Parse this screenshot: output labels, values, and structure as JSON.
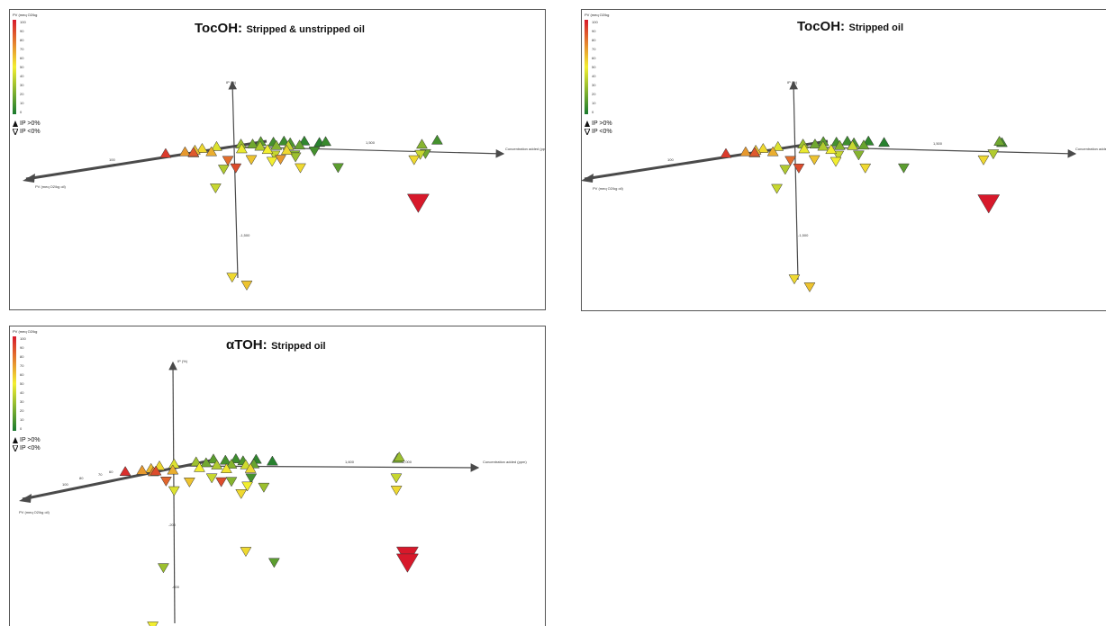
{
  "colors": {
    "axis": "#4a4a4a",
    "panel_border": "#555555",
    "low": "#1a7a2e",
    "mid": "#f2ee30",
    "high": "#d7192b"
  },
  "legend": {
    "title": "PV (meq O2/kg",
    "ticks": [
      "100",
      "90",
      "80",
      "70",
      "60",
      "50",
      "40",
      "30",
      "20",
      "10",
      "0"
    ],
    "ip_pos": "IP >0%",
    "ip_neg": "IP <0%"
  },
  "chart_data": [
    {
      "type": "scatter",
      "title_main": "TocOH:",
      "title_sub": "Stripped & unstripped oil",
      "xlabel": "Concentration added (ppm)",
      "ylabel": "IP (%)",
      "zlabel": "PV (meq O2/kg oil)",
      "x_ticks": [
        "1,500"
      ],
      "y_ticks": [
        "-1,500"
      ],
      "z_ticks": [
        "100"
      ],
      "xlim": [
        0,
        3000
      ],
      "ylim": [
        -1800,
        100
      ],
      "zlim": [
        0,
        100
      ],
      "color_scale": "PV 0 (green) to 100 (red)",
      "marker": "up-triangle IP>0, down-triangle IP<0",
      "points": [
        {
          "x": 10,
          "y": 20,
          "z": 92
        },
        {
          "x": 50,
          "y": 15,
          "z": 70
        },
        {
          "x": 80,
          "y": 18,
          "z": 60
        },
        {
          "x": 120,
          "y": 25,
          "z": 55
        },
        {
          "x": 160,
          "y": 10,
          "z": 72
        },
        {
          "x": 200,
          "y": 30,
          "z": 45
        },
        {
          "x": 260,
          "y": 22,
          "z": 85
        },
        {
          "x": 300,
          "y": 12,
          "z": 65
        },
        {
          "x": 350,
          "y": 35,
          "z": 30
        },
        {
          "x": 400,
          "y": 28,
          "z": 20
        },
        {
          "x": 450,
          "y": 40,
          "z": 15
        },
        {
          "x": 500,
          "y": 18,
          "z": 48
        },
        {
          "x": 550,
          "y": 33,
          "z": 10
        },
        {
          "x": 600,
          "y": 25,
          "z": 35
        },
        {
          "x": 650,
          "y": 38,
          "z": 8
        },
        {
          "x": 700,
          "y": 22,
          "z": 25
        },
        {
          "x": 750,
          "y": 30,
          "z": 12
        },
        {
          "x": 800,
          "y": 15,
          "z": 50
        },
        {
          "x": 850,
          "y": 36,
          "z": 5
        },
        {
          "x": 900,
          "y": 20,
          "z": 18
        },
        {
          "x": 950,
          "y": 32,
          "z": 40
        },
        {
          "x": 1000,
          "y": 26,
          "z": 3
        },
        {
          "x": 1050,
          "y": 14,
          "z": 55
        },
        {
          "x": 1100,
          "y": 34,
          "z": 7
        },
        {
          "x": 600,
          "y": -60,
          "z": 80
        },
        {
          "x": 700,
          "y": -80,
          "z": 60
        },
        {
          "x": 800,
          "y": -50,
          "z": 40
        },
        {
          "x": 900,
          "y": -70,
          "z": 25
        },
        {
          "x": 1000,
          "y": -40,
          "z": 10
        },
        {
          "x": 750,
          "y": -150,
          "z": 88
        },
        {
          "x": 850,
          "y": -120,
          "z": 50
        },
        {
          "x": 950,
          "y": -90,
          "z": 30
        },
        {
          "x": 1100,
          "y": -60,
          "z": 70
        },
        {
          "x": 1200,
          "y": -200,
          "z": 55
        },
        {
          "x": 1300,
          "y": -260,
          "z": 15
        },
        {
          "x": 200,
          "y": -250,
          "z": 35
        },
        {
          "x": 150,
          "y": -500,
          "z": 40
        },
        {
          "x": 2300,
          "y": 30,
          "z": 25
        },
        {
          "x": 2350,
          "y": 45,
          "z": 10
        },
        {
          "x": 2400,
          "y": -40,
          "z": 40
        },
        {
          "x": 2450,
          "y": -90,
          "z": 55
        },
        {
          "x": 2300,
          "y": -60,
          "z": 20
        },
        {
          "x": 2850,
          "y": -600,
          "z": 100
        },
        {
          "x": 450,
          "y": -1700,
          "z": 55
        },
        {
          "x": 650,
          "y": -1800,
          "z": 60
        }
      ]
    },
    {
      "type": "scatter",
      "title_main": "TocOH:",
      "title_sub": "Stripped oil",
      "xlabel": "Concentration added (ppm)",
      "ylabel": "IP (%)",
      "zlabel": "PV (meq O2/kg oil)",
      "x_ticks": [
        "1,500"
      ],
      "y_ticks": [
        "-1,500"
      ],
      "z_ticks": [
        "100"
      ],
      "xlim": [
        0,
        3000
      ],
      "ylim": [
        -1800,
        100
      ],
      "zlim": [
        0,
        100
      ],
      "color_scale": "PV 0 (green) to 100 (red)",
      "marker": "up-triangle IP>0, down-triangle IP<0",
      "points": [
        {
          "x": 10,
          "y": 20,
          "z": 92
        },
        {
          "x": 50,
          "y": 15,
          "z": 70
        },
        {
          "x": 80,
          "y": 18,
          "z": 60
        },
        {
          "x": 120,
          "y": 25,
          "z": 55
        },
        {
          "x": 160,
          "y": 10,
          "z": 72
        },
        {
          "x": 200,
          "y": 30,
          "z": 45
        },
        {
          "x": 260,
          "y": 22,
          "z": 85
        },
        {
          "x": 300,
          "y": 12,
          "z": 65
        },
        {
          "x": 350,
          "y": 35,
          "z": 30
        },
        {
          "x": 400,
          "y": 28,
          "z": 20
        },
        {
          "x": 450,
          "y": 40,
          "z": 15
        },
        {
          "x": 500,
          "y": 18,
          "z": 48
        },
        {
          "x": 550,
          "y": 33,
          "z": 10
        },
        {
          "x": 600,
          "y": 25,
          "z": 35
        },
        {
          "x": 650,
          "y": 38,
          "z": 8
        },
        {
          "x": 700,
          "y": 22,
          "z": 25
        },
        {
          "x": 750,
          "y": 30,
          "z": 12
        },
        {
          "x": 800,
          "y": 15,
          "z": 50
        },
        {
          "x": 850,
          "y": 36,
          "z": 5
        },
        {
          "x": 900,
          "y": 20,
          "z": 18
        },
        {
          "x": 950,
          "y": 32,
          "z": 40
        },
        {
          "x": 1000,
          "y": 26,
          "z": 3
        },
        {
          "x": 600,
          "y": -60,
          "z": 80
        },
        {
          "x": 700,
          "y": -80,
          "z": 60
        },
        {
          "x": 800,
          "y": -50,
          "z": 40
        },
        {
          "x": 900,
          "y": -70,
          "z": 25
        },
        {
          "x": 750,
          "y": -150,
          "z": 88
        },
        {
          "x": 850,
          "y": -120,
          "z": 50
        },
        {
          "x": 1200,
          "y": -200,
          "z": 55
        },
        {
          "x": 1300,
          "y": -260,
          "z": 15
        },
        {
          "x": 200,
          "y": -250,
          "z": 35
        },
        {
          "x": 150,
          "y": -500,
          "z": 40
        },
        {
          "x": 2300,
          "y": 30,
          "z": 10
        },
        {
          "x": 2350,
          "y": 45,
          "z": 20
        },
        {
          "x": 2400,
          "y": -40,
          "z": 35
        },
        {
          "x": 2450,
          "y": -90,
          "z": 55
        },
        {
          "x": 2850,
          "y": -600,
          "z": 100
        },
        {
          "x": 450,
          "y": -1700,
          "z": 55
        },
        {
          "x": 650,
          "y": -1800,
          "z": 60
        }
      ]
    },
    {
      "type": "scatter",
      "title_main": "αTOH:",
      "title_sub": "Stripped oil",
      "xlabel": "Concentration added (ppm)",
      "ylabel": "IP (%)",
      "zlabel": "PV (meq O2/kg oil)",
      "x_ticks": [
        "400",
        "1,600",
        "2,000"
      ],
      "y_ticks": [
        "-200",
        "-600"
      ],
      "z_ticks": [
        "100",
        "80",
        "70",
        "60"
      ],
      "xlim": [
        0,
        2600
      ],
      "ylim": [
        -900,
        150
      ],
      "zlim": [
        0,
        100
      ],
      "color_scale": "PV 0 (green) to 100 (red)",
      "marker": "up-triangle IP>0, down-triangle IP<0",
      "points": [
        {
          "x": 10,
          "y": 30,
          "z": 95
        },
        {
          "x": 40,
          "y": 20,
          "z": 70
        },
        {
          "x": 80,
          "y": 25,
          "z": 62
        },
        {
          "x": 120,
          "y": 35,
          "z": 55
        },
        {
          "x": 160,
          "y": 15,
          "z": 75
        },
        {
          "x": 200,
          "y": 40,
          "z": 45
        },
        {
          "x": 240,
          "y": 28,
          "z": 88
        },
        {
          "x": 280,
          "y": 18,
          "z": 65
        },
        {
          "x": 320,
          "y": 42,
          "z": 30
        },
        {
          "x": 360,
          "y": 30,
          "z": 20
        },
        {
          "x": 400,
          "y": 48,
          "z": 15
        },
        {
          "x": 440,
          "y": 22,
          "z": 50
        },
        {
          "x": 480,
          "y": 38,
          "z": 10
        },
        {
          "x": 520,
          "y": 27,
          "z": 35
        },
        {
          "x": 560,
          "y": 45,
          "z": 8
        },
        {
          "x": 600,
          "y": 25,
          "z": 25
        },
        {
          "x": 640,
          "y": 36,
          "z": 12
        },
        {
          "x": 680,
          "y": 17,
          "z": 52
        },
        {
          "x": 720,
          "y": 40,
          "z": 5
        },
        {
          "x": 760,
          "y": 22,
          "z": 18
        },
        {
          "x": 800,
          "y": 33,
          "z": 42
        },
        {
          "x": 850,
          "y": 28,
          "z": 3
        },
        {
          "x": 900,
          "y": 20,
          "z": 55
        },
        {
          "x": 300,
          "y": -30,
          "z": 82
        },
        {
          "x": 400,
          "y": -50,
          "z": 60
        },
        {
          "x": 500,
          "y": -40,
          "z": 40
        },
        {
          "x": 600,
          "y": -70,
          "z": 25
        },
        {
          "x": 700,
          "y": -60,
          "z": 10
        },
        {
          "x": 800,
          "y": -30,
          "z": 88
        },
        {
          "x": 850,
          "y": -80,
          "z": 50
        },
        {
          "x": 900,
          "y": -100,
          "z": 30
        },
        {
          "x": 820,
          "y": -120,
          "z": 55
        },
        {
          "x": 200,
          "y": -110,
          "z": 45
        },
        {
          "x": 860,
          "y": -450,
          "z": 55
        },
        {
          "x": 920,
          "y": -540,
          "z": 15
        },
        {
          "x": 40,
          "y": -560,
          "z": 30
        },
        {
          "x": 40,
          "y": -880,
          "z": 50
        },
        {
          "x": 2000,
          "y": 55,
          "z": 20
        },
        {
          "x": 2060,
          "y": 70,
          "z": 30
        },
        {
          "x": 2080,
          "y": -40,
          "z": 40
        },
        {
          "x": 2150,
          "y": -100,
          "z": 55
        },
        {
          "x": 2450,
          "y": -440,
          "z": 100
        },
        {
          "x": 2450,
          "y": -480,
          "z": 100
        }
      ]
    }
  ]
}
